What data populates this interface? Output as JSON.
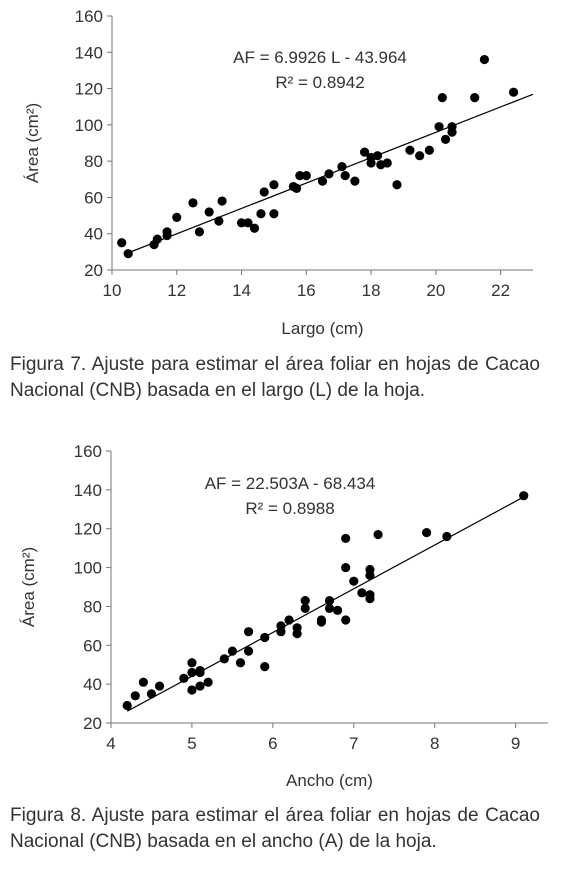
{
  "chart_data": [
    {
      "type": "scatter",
      "xlabel": "Largo (cm)",
      "ylabel": "Área (cm²)",
      "xlim": [
        10,
        23
      ],
      "ylim": [
        20,
        160
      ],
      "xticks": [
        10,
        12,
        14,
        16,
        18,
        20,
        22
      ],
      "yticks": [
        20,
        40,
        60,
        80,
        100,
        120,
        140,
        160
      ],
      "equation": "AF = 6.9926 L - 43.964",
      "r2": "R² = 0.8942",
      "trendline": {
        "slope": 6.9926,
        "intercept": -43.964,
        "x": [
          10.4,
          23
        ]
      },
      "points": [
        [
          10.3,
          35
        ],
        [
          10.5,
          29
        ],
        [
          11.3,
          34
        ],
        [
          11.4,
          37
        ],
        [
          11.7,
          39
        ],
        [
          11.7,
          41
        ],
        [
          12.0,
          49
        ],
        [
          12.5,
          57
        ],
        [
          12.7,
          41
        ],
        [
          13.0,
          52
        ],
        [
          13.3,
          47
        ],
        [
          13.4,
          58
        ],
        [
          14.0,
          46
        ],
        [
          14.2,
          46
        ],
        [
          14.4,
          43
        ],
        [
          14.6,
          51
        ],
        [
          14.7,
          63
        ],
        [
          15.0,
          51
        ],
        [
          15.0,
          67
        ],
        [
          15.6,
          66
        ],
        [
          15.7,
          65
        ],
        [
          15.8,
          72
        ],
        [
          16.0,
          72
        ],
        [
          16.5,
          69
        ],
        [
          16.7,
          73
        ],
        [
          17.1,
          77
        ],
        [
          17.2,
          72
        ],
        [
          17.5,
          69
        ],
        [
          17.8,
          85
        ],
        [
          18.0,
          79
        ],
        [
          18.0,
          82
        ],
        [
          18.2,
          83
        ],
        [
          18.3,
          78
        ],
        [
          18.5,
          79
        ],
        [
          18.8,
          67
        ],
        [
          19.2,
          86
        ],
        [
          19.5,
          83
        ],
        [
          19.8,
          86
        ],
        [
          20.1,
          99
        ],
        [
          20.2,
          115
        ],
        [
          20.3,
          92
        ],
        [
          20.5,
          96
        ],
        [
          20.5,
          99
        ],
        [
          21.2,
          115
        ],
        [
          21.5,
          136
        ],
        [
          22.4,
          118
        ]
      ]
    },
    {
      "type": "scatter",
      "xlabel": "Ancho (cm)",
      "ylabel": "Área (cm²)",
      "xlim": [
        4,
        9.4
      ],
      "ylim": [
        20,
        160
      ],
      "xticks": [
        4,
        5,
        6,
        7,
        8,
        9
      ],
      "yticks": [
        20,
        40,
        60,
        80,
        100,
        120,
        140,
        160
      ],
      "equation": "AF = 22.503A - 68.434",
      "r2": "R² = 0.8988",
      "trendline": {
        "slope": 22.503,
        "intercept": -68.434,
        "x": [
          4.2,
          9.1
        ]
      },
      "points": [
        [
          4.2,
          29
        ],
        [
          4.3,
          34
        ],
        [
          4.4,
          41
        ],
        [
          4.5,
          35
        ],
        [
          4.6,
          39
        ],
        [
          4.9,
          43
        ],
        [
          5.0,
          37
        ],
        [
          5.0,
          46
        ],
        [
          5.0,
          51
        ],
        [
          5.1,
          39
        ],
        [
          5.1,
          46
        ],
        [
          5.1,
          47
        ],
        [
          5.2,
          41
        ],
        [
          5.4,
          53
        ],
        [
          5.5,
          57
        ],
        [
          5.6,
          51
        ],
        [
          5.7,
          57
        ],
        [
          5.7,
          67
        ],
        [
          5.9,
          49
        ],
        [
          5.9,
          64
        ],
        [
          6.1,
          67
        ],
        [
          6.1,
          70
        ],
        [
          6.2,
          73
        ],
        [
          6.3,
          66
        ],
        [
          6.3,
          69
        ],
        [
          6.4,
          79
        ],
        [
          6.4,
          83
        ],
        [
          6.6,
          72
        ],
        [
          6.6,
          73
        ],
        [
          6.7,
          79
        ],
        [
          6.7,
          83
        ],
        [
          6.8,
          78
        ],
        [
          6.9,
          73
        ],
        [
          6.9,
          100
        ],
        [
          6.9,
          115
        ],
        [
          7.0,
          93
        ],
        [
          7.1,
          87
        ],
        [
          7.2,
          84
        ],
        [
          7.2,
          86
        ],
        [
          7.2,
          96
        ],
        [
          7.2,
          99
        ],
        [
          7.3,
          117
        ],
        [
          7.9,
          118
        ],
        [
          8.15,
          116
        ],
        [
          9.1,
          137
        ]
      ]
    }
  ],
  "captions": [
    "Figura 7. Ajuste para estimar el área foliar en hojas de Cacao Nacional (CNB) basada en el largo (L) de la hoja.",
    "Figura 8. Ajuste para estimar el área foliar en hojas de Cacao Nacional (CNB) basada en el ancho (A) de la hoja."
  ]
}
